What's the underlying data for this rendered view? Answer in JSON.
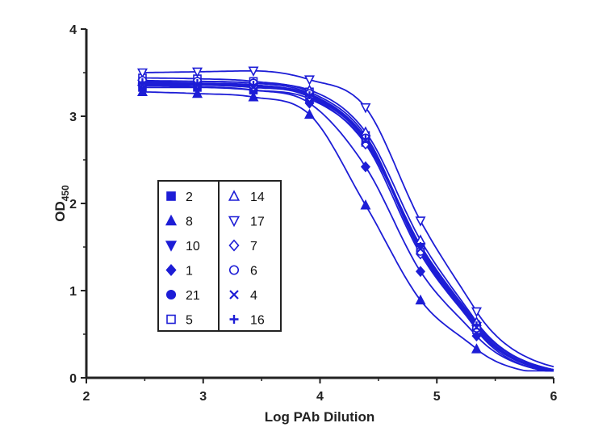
{
  "chart_data": {
    "type": "line",
    "xlabel": "Log PAb Dilution",
    "ylabel": "OD",
    "ylabel_subscript": "450",
    "xlim": [
      2,
      6
    ],
    "ylim": [
      0,
      4
    ],
    "x_ticks": [
      2,
      3,
      4,
      5,
      6
    ],
    "y_ticks": [
      0,
      1,
      2,
      3,
      4
    ],
    "grid": false,
    "legend_position": "left-center",
    "line_color": "#1d1dd6",
    "x": [
      2.48,
      2.95,
      3.43,
      3.91,
      4.39,
      4.86,
      5.34
    ],
    "series": [
      {
        "name": "2",
        "marker": "square-filled",
        "values": [
          3.33,
          3.33,
          3.3,
          3.2,
          2.7,
          1.5,
          0.58
        ]
      },
      {
        "name": "8",
        "marker": "triangle-filled",
        "values": [
          3.28,
          3.26,
          3.22,
          3.02,
          1.98,
          0.89,
          0.33
        ]
      },
      {
        "name": "10",
        "marker": "tri-down-filled",
        "values": [
          3.37,
          3.36,
          3.33,
          3.24,
          2.73,
          1.5,
          0.59
        ]
      },
      {
        "name": "1",
        "marker": "diamond-filled",
        "values": [
          3.35,
          3.34,
          3.3,
          3.15,
          2.42,
          1.22,
          0.48
        ]
      },
      {
        "name": "21",
        "marker": "circle-filled",
        "values": [
          3.37,
          3.37,
          3.35,
          3.25,
          2.74,
          1.52,
          0.62
        ]
      },
      {
        "name": "5",
        "marker": "square-open",
        "values": [
          3.44,
          3.43,
          3.4,
          3.28,
          2.78,
          1.47,
          0.55
        ]
      },
      {
        "name": "14",
        "marker": "triangle-open",
        "values": [
          3.4,
          3.4,
          3.38,
          3.3,
          2.82,
          1.58,
          0.64
        ]
      },
      {
        "name": "17",
        "marker": "tri-down-open",
        "values": [
          3.5,
          3.51,
          3.52,
          3.42,
          3.1,
          1.8,
          0.76
        ]
      },
      {
        "name": "7",
        "marker": "diamond-open",
        "values": [
          3.38,
          3.37,
          3.34,
          3.22,
          2.68,
          1.42,
          0.56
        ]
      },
      {
        "name": "6",
        "marker": "circle-open",
        "values": [
          3.41,
          3.4,
          3.38,
          3.26,
          2.75,
          1.45,
          0.57
        ]
      },
      {
        "name": "4",
        "marker": "x",
        "values": [
          3.36,
          3.36,
          3.34,
          3.23,
          2.72,
          1.48,
          0.58
        ]
      },
      {
        "name": "16",
        "marker": "plus",
        "values": [
          3.39,
          3.38,
          3.36,
          3.24,
          2.74,
          1.51,
          0.6
        ]
      }
    ]
  }
}
